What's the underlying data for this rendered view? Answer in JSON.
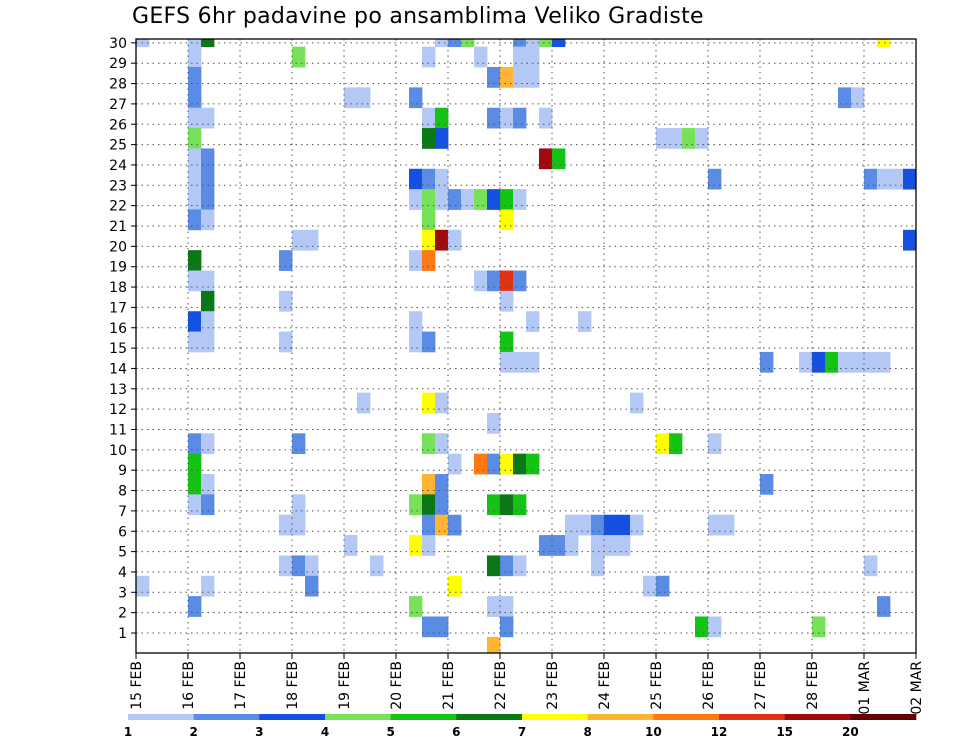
{
  "chart_data": {
    "type": "heatmap",
    "title": "GEFS 6hr padavine po ansamblima Veliko Gradiste",
    "xlabel": "",
    "ylabel": "",
    "x_tick_labels": [
      "15 FEB",
      "16 FEB",
      "17 FEB",
      "18 FEB",
      "19 FEB",
      "20 FEB",
      "21 FEB",
      "22 FEB",
      "23 FEB",
      "24 FEB",
      "25 FEB",
      "26 FEB",
      "27 FEB",
      "28 FEB",
      "01 MAR",
      "02 MAR"
    ],
    "y_tick_labels": [
      "1",
      "2",
      "3",
      "4",
      "5",
      "6",
      "7",
      "8",
      "9",
      "10",
      "11",
      "12",
      "13",
      "14",
      "15",
      "16",
      "17",
      "18",
      "19",
      "20",
      "21",
      "22",
      "23",
      "24",
      "25",
      "26",
      "27",
      "28",
      "29",
      "30"
    ],
    "xlim": [
      0,
      60
    ],
    "ylim": [
      0,
      30
    ],
    "grid": true,
    "color_scale": {
      "thresholds": [
        1,
        2,
        3,
        4,
        5,
        6,
        7,
        8,
        10,
        12,
        15,
        20
      ],
      "colors": [
        "#b4c8f5",
        "#5a8ce6",
        "#1450e1",
        "#78e15a",
        "#14c314",
        "#0a7814",
        "#ffff00",
        "#ffb432",
        "#ff7814",
        "#e13214",
        "#a00a0a",
        "#640000"
      ],
      "tick_labels": [
        "1",
        "2",
        "3",
        "4",
        "5",
        "6",
        "7",
        "8",
        "10",
        "12",
        "15",
        "20"
      ]
    },
    "cells": [
      {
        "t": 0,
        "m": 30,
        "v": 1
      },
      {
        "t": 4,
        "m": 30,
        "v": 1
      },
      {
        "t": 5,
        "m": 30,
        "v": 6
      },
      {
        "t": 23,
        "m": 30,
        "v": 1
      },
      {
        "t": 24,
        "m": 30,
        "v": 2
      },
      {
        "t": 25,
        "m": 30,
        "v": 4
      },
      {
        "t": 29,
        "m": 30,
        "v": 2
      },
      {
        "t": 30,
        "m": 30,
        "v": 1
      },
      {
        "t": 31,
        "m": 30,
        "v": 4
      },
      {
        "t": 32,
        "m": 30,
        "v": 3
      },
      {
        "t": 57,
        "m": 30,
        "v": 7
      },
      {
        "t": 4,
        "m": 29,
        "v": 1
      },
      {
        "t": 12,
        "m": 29,
        "v": 4
      },
      {
        "t": 22,
        "m": 29,
        "v": 1
      },
      {
        "t": 26,
        "m": 29,
        "v": 1
      },
      {
        "t": 29,
        "m": 29,
        "v": 1
      },
      {
        "t": 30,
        "m": 29,
        "v": 1
      },
      {
        "t": 4,
        "m": 28,
        "v": 2
      },
      {
        "t": 27,
        "m": 28,
        "v": 2
      },
      {
        "t": 28,
        "m": 28,
        "v": 8
      },
      {
        "t": 29,
        "m": 28,
        "v": 1
      },
      {
        "t": 30,
        "m": 28,
        "v": 1
      },
      {
        "t": 4,
        "m": 27,
        "v": 2
      },
      {
        "t": 16,
        "m": 27,
        "v": 1
      },
      {
        "t": 17,
        "m": 27,
        "v": 1
      },
      {
        "t": 21,
        "m": 27,
        "v": 2
      },
      {
        "t": 54,
        "m": 27,
        "v": 2
      },
      {
        "t": 55,
        "m": 27,
        "v": 1
      },
      {
        "t": 4,
        "m": 26,
        "v": 1
      },
      {
        "t": 5,
        "m": 26,
        "v": 1
      },
      {
        "t": 22,
        "m": 26,
        "v": 1
      },
      {
        "t": 23,
        "m": 26,
        "v": 5
      },
      {
        "t": 27,
        "m": 26,
        "v": 2
      },
      {
        "t": 28,
        "m": 26,
        "v": 1
      },
      {
        "t": 29,
        "m": 26,
        "v": 2
      },
      {
        "t": 31,
        "m": 26,
        "v": 1
      },
      {
        "t": 4,
        "m": 25,
        "v": 4
      },
      {
        "t": 22,
        "m": 25,
        "v": 6
      },
      {
        "t": 23,
        "m": 25,
        "v": 3
      },
      {
        "t": 40,
        "m": 25,
        "v": 1
      },
      {
        "t": 41,
        "m": 25,
        "v": 1
      },
      {
        "t": 42,
        "m": 25,
        "v": 4
      },
      {
        "t": 43,
        "m": 25,
        "v": 1
      },
      {
        "t": 4,
        "m": 24,
        "v": 1
      },
      {
        "t": 5,
        "m": 24,
        "v": 2
      },
      {
        "t": 31,
        "m": 24,
        "v": 15
      },
      {
        "t": 32,
        "m": 24,
        "v": 5
      },
      {
        "t": 4,
        "m": 23,
        "v": 1
      },
      {
        "t": 5,
        "m": 23,
        "v": 2
      },
      {
        "t": 21,
        "m": 23,
        "v": 3
      },
      {
        "t": 22,
        "m": 23,
        "v": 2
      },
      {
        "t": 23,
        "m": 23,
        "v": 1
      },
      {
        "t": 44,
        "m": 23,
        "v": 2
      },
      {
        "t": 56,
        "m": 23,
        "v": 2
      },
      {
        "t": 57,
        "m": 23,
        "v": 1
      },
      {
        "t": 58,
        "m": 23,
        "v": 1
      },
      {
        "t": 59,
        "m": 23,
        "v": 3
      },
      {
        "t": 4,
        "m": 22,
        "v": 1
      },
      {
        "t": 5,
        "m": 22,
        "v": 2
      },
      {
        "t": 21,
        "m": 22,
        "v": 1
      },
      {
        "t": 22,
        "m": 22,
        "v": 4
      },
      {
        "t": 23,
        "m": 22,
        "v": 1
      },
      {
        "t": 24,
        "m": 22,
        "v": 2
      },
      {
        "t": 25,
        "m": 22,
        "v": 1
      },
      {
        "t": 26,
        "m": 22,
        "v": 4
      },
      {
        "t": 27,
        "m": 22,
        "v": 3
      },
      {
        "t": 28,
        "m": 22,
        "v": 5
      },
      {
        "t": 29,
        "m": 22,
        "v": 1
      },
      {
        "t": 4,
        "m": 21,
        "v": 2
      },
      {
        "t": 5,
        "m": 21,
        "v": 1
      },
      {
        "t": 22,
        "m": 21,
        "v": 4
      },
      {
        "t": 28,
        "m": 21,
        "v": 7
      },
      {
        "t": 12,
        "m": 20,
        "v": 1
      },
      {
        "t": 13,
        "m": 20,
        "v": 1
      },
      {
        "t": 22,
        "m": 20,
        "v": 7
      },
      {
        "t": 23,
        "m": 20,
        "v": 15
      },
      {
        "t": 24,
        "m": 20,
        "v": 1
      },
      {
        "t": 59,
        "m": 20,
        "v": 3
      },
      {
        "t": 4,
        "m": 19,
        "v": 6
      },
      {
        "t": 11,
        "m": 19,
        "v": 2
      },
      {
        "t": 21,
        "m": 19,
        "v": 1
      },
      {
        "t": 22,
        "m": 19,
        "v": 10
      },
      {
        "t": 4,
        "m": 18,
        "v": 1
      },
      {
        "t": 5,
        "m": 18,
        "v": 1
      },
      {
        "t": 26,
        "m": 18,
        "v": 1
      },
      {
        "t": 27,
        "m": 18,
        "v": 2
      },
      {
        "t": 28,
        "m": 18,
        "v": 12
      },
      {
        "t": 29,
        "m": 18,
        "v": 2
      },
      {
        "t": 5,
        "m": 17,
        "v": 6
      },
      {
        "t": 11,
        "m": 17,
        "v": 1
      },
      {
        "t": 28,
        "m": 17,
        "v": 1
      },
      {
        "t": 4,
        "m": 16,
        "v": 3
      },
      {
        "t": 5,
        "m": 16,
        "v": 1
      },
      {
        "t": 21,
        "m": 16,
        "v": 1
      },
      {
        "t": 30,
        "m": 16,
        "v": 1
      },
      {
        "t": 34,
        "m": 16,
        "v": 1
      },
      {
        "t": 4,
        "m": 15,
        "v": 1
      },
      {
        "t": 5,
        "m": 15,
        "v": 1
      },
      {
        "t": 11,
        "m": 15,
        "v": 1
      },
      {
        "t": 21,
        "m": 15,
        "v": 1
      },
      {
        "t": 22,
        "m": 15,
        "v": 2
      },
      {
        "t": 28,
        "m": 15,
        "v": 5
      },
      {
        "t": 28,
        "m": 14,
        "v": 1
      },
      {
        "t": 29,
        "m": 14,
        "v": 1
      },
      {
        "t": 30,
        "m": 14,
        "v": 1
      },
      {
        "t": 48,
        "m": 14,
        "v": 2
      },
      {
        "t": 51,
        "m": 14,
        "v": 1
      },
      {
        "t": 52,
        "m": 14,
        "v": 3
      },
      {
        "t": 53,
        "m": 14,
        "v": 5
      },
      {
        "t": 54,
        "m": 14,
        "v": 1
      },
      {
        "t": 55,
        "m": 14,
        "v": 1
      },
      {
        "t": 56,
        "m": 14,
        "v": 1
      },
      {
        "t": 57,
        "m": 14,
        "v": 1
      },
      {
        "t": 17,
        "m": 12,
        "v": 1
      },
      {
        "t": 22,
        "m": 12,
        "v": 7
      },
      {
        "t": 23,
        "m": 12,
        "v": 1
      },
      {
        "t": 38,
        "m": 12,
        "v": 1
      },
      {
        "t": 27,
        "m": 11,
        "v": 1
      },
      {
        "t": 4,
        "m": 10,
        "v": 2
      },
      {
        "t": 5,
        "m": 10,
        "v": 1
      },
      {
        "t": 12,
        "m": 10,
        "v": 2
      },
      {
        "t": 22,
        "m": 10,
        "v": 4
      },
      {
        "t": 23,
        "m": 10,
        "v": 1
      },
      {
        "t": 40,
        "m": 10,
        "v": 7
      },
      {
        "t": 41,
        "m": 10,
        "v": 5
      },
      {
        "t": 44,
        "m": 10,
        "v": 1
      },
      {
        "t": 4,
        "m": 9,
        "v": 5
      },
      {
        "t": 24,
        "m": 9,
        "v": 1
      },
      {
        "t": 26,
        "m": 9,
        "v": 10
      },
      {
        "t": 27,
        "m": 9,
        "v": 2
      },
      {
        "t": 28,
        "m": 9,
        "v": 7
      },
      {
        "t": 29,
        "m": 9,
        "v": 6
      },
      {
        "t": 30,
        "m": 9,
        "v": 5
      },
      {
        "t": 4,
        "m": 8,
        "v": 5
      },
      {
        "t": 5,
        "m": 8,
        "v": 1
      },
      {
        "t": 22,
        "m": 8,
        "v": 8
      },
      {
        "t": 23,
        "m": 8,
        "v": 2
      },
      {
        "t": 48,
        "m": 8,
        "v": 2
      },
      {
        "t": 4,
        "m": 7,
        "v": 1
      },
      {
        "t": 5,
        "m": 7,
        "v": 2
      },
      {
        "t": 12,
        "m": 7,
        "v": 1
      },
      {
        "t": 21,
        "m": 7,
        "v": 4
      },
      {
        "t": 22,
        "m": 7,
        "v": 6
      },
      {
        "t": 23,
        "m": 7,
        "v": 2
      },
      {
        "t": 27,
        "m": 7,
        "v": 5
      },
      {
        "t": 28,
        "m": 7,
        "v": 6
      },
      {
        "t": 29,
        "m": 7,
        "v": 5
      },
      {
        "t": 11,
        "m": 6,
        "v": 1
      },
      {
        "t": 12,
        "m": 6,
        "v": 1
      },
      {
        "t": 22,
        "m": 6,
        "v": 2
      },
      {
        "t": 23,
        "m": 6,
        "v": 8
      },
      {
        "t": 24,
        "m": 6,
        "v": 2
      },
      {
        "t": 33,
        "m": 6,
        "v": 1
      },
      {
        "t": 34,
        "m": 6,
        "v": 1
      },
      {
        "t": 35,
        "m": 6,
        "v": 2
      },
      {
        "t": 36,
        "m": 6,
        "v": 3
      },
      {
        "t": 37,
        "m": 6,
        "v": 3
      },
      {
        "t": 38,
        "m": 6,
        "v": 1
      },
      {
        "t": 44,
        "m": 6,
        "v": 1
      },
      {
        "t": 45,
        "m": 6,
        "v": 1
      },
      {
        "t": 16,
        "m": 5,
        "v": 1
      },
      {
        "t": 21,
        "m": 5,
        "v": 7
      },
      {
        "t": 22,
        "m": 5,
        "v": 1
      },
      {
        "t": 31,
        "m": 5,
        "v": 2
      },
      {
        "t": 32,
        "m": 5,
        "v": 2
      },
      {
        "t": 33,
        "m": 5,
        "v": 1
      },
      {
        "t": 35,
        "m": 5,
        "v": 1
      },
      {
        "t": 36,
        "m": 5,
        "v": 1
      },
      {
        "t": 37,
        "m": 5,
        "v": 1
      },
      {
        "t": 11,
        "m": 4,
        "v": 1
      },
      {
        "t": 12,
        "m": 4,
        "v": 2
      },
      {
        "t": 13,
        "m": 4,
        "v": 1
      },
      {
        "t": 18,
        "m": 4,
        "v": 1
      },
      {
        "t": 27,
        "m": 4,
        "v": 6
      },
      {
        "t": 28,
        "m": 4,
        "v": 2
      },
      {
        "t": 29,
        "m": 4,
        "v": 1
      },
      {
        "t": 35,
        "m": 4,
        "v": 1
      },
      {
        "t": 56,
        "m": 4,
        "v": 1
      },
      {
        "t": 0,
        "m": 3,
        "v": 1
      },
      {
        "t": 5,
        "m": 3,
        "v": 1
      },
      {
        "t": 13,
        "m": 3,
        "v": 2
      },
      {
        "t": 24,
        "m": 3,
        "v": 7
      },
      {
        "t": 39,
        "m": 3,
        "v": 1
      },
      {
        "t": 40,
        "m": 3,
        "v": 2
      },
      {
        "t": 4,
        "m": 2,
        "v": 2
      },
      {
        "t": 21,
        "m": 2,
        "v": 4
      },
      {
        "t": 27,
        "m": 2,
        "v": 1
      },
      {
        "t": 28,
        "m": 2,
        "v": 1
      },
      {
        "t": 57,
        "m": 2,
        "v": 2
      },
      {
        "t": 22,
        "m": 1,
        "v": 2
      },
      {
        "t": 23,
        "m": 1,
        "v": 2
      },
      {
        "t": 28,
        "m": 1,
        "v": 2
      },
      {
        "t": 43,
        "m": 1,
        "v": 5
      },
      {
        "t": 44,
        "m": 1,
        "v": 1
      },
      {
        "t": 52,
        "m": 1,
        "v": 4
      },
      {
        "t": 27,
        "m": 0,
        "v": 8
      }
    ]
  }
}
